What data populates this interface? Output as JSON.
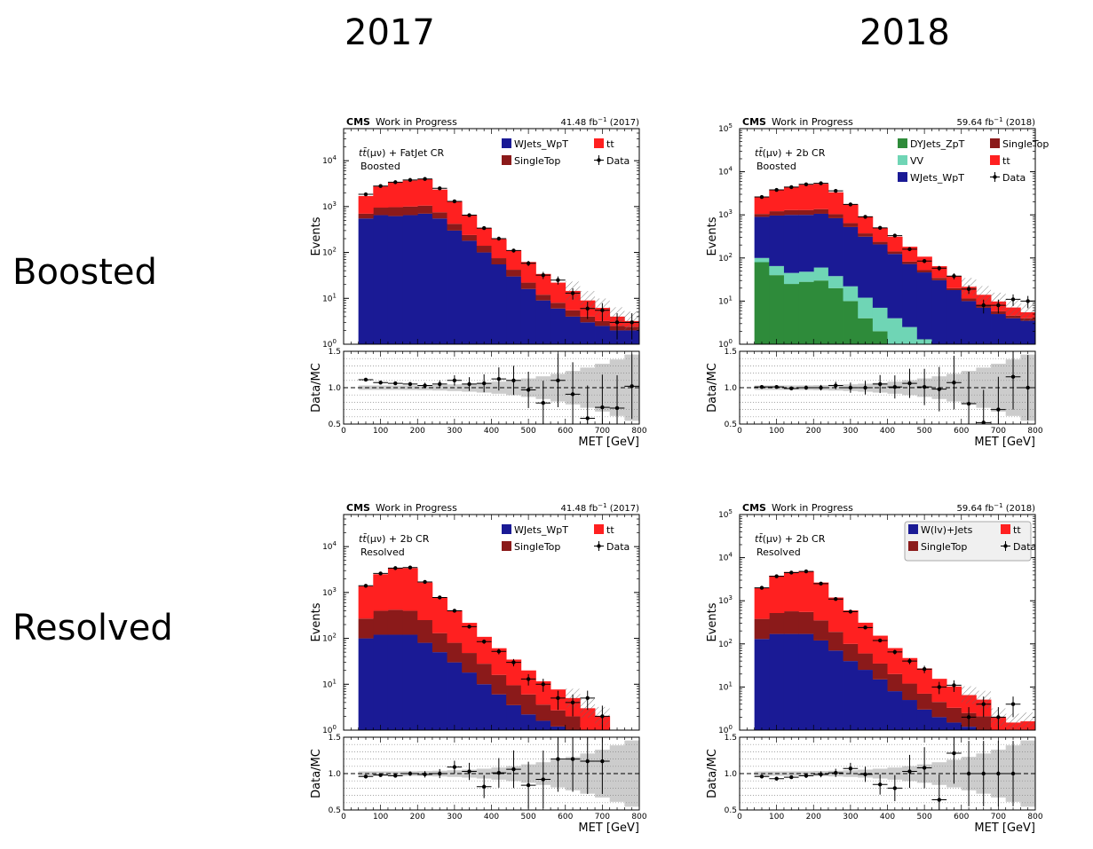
{
  "layout": {
    "col_titles": [
      "2017",
      "2018"
    ],
    "row_titles": [
      "Boosted",
      "Resolved"
    ]
  },
  "chart_data": [
    {
      "id": "boosted_2017",
      "type": "bar",
      "stacked": true,
      "yscale": "log",
      "ylim": [
        1,
        50000
      ],
      "xlim": [
        0,
        800
      ],
      "ratio_ylim": [
        0.5,
        1.5
      ],
      "xlabel": "MET [GeV]",
      "ylabel": "Events",
      "ratio_ylabel": "Data/MC",
      "exp_label": "CMS",
      "exp_sub": "Work in Progress",
      "lumi": "41.48",
      "lumi_year": "(2017)",
      "region": "FatJet CR",
      "subregion": "Boosted",
      "bins": [
        40,
        80,
        120,
        160,
        200,
        240,
        280,
        320,
        360,
        400,
        440,
        480,
        520,
        560,
        600,
        640,
        680,
        720,
        760,
        800
      ],
      "stack": [
        {
          "name": "WJets_WpT",
          "color": "#1a1a95",
          "values": [
            550,
            650,
            620,
            650,
            700,
            550,
            300,
            180,
            100,
            55,
            30,
            16,
            9,
            6,
            4,
            3,
            2.5,
            2,
            2
          ]
        },
        {
          "name": "SingleTop",
          "color": "#8b1a1a",
          "values": [
            150,
            300,
            350,
            350,
            350,
            200,
            120,
            60,
            40,
            20,
            12,
            6,
            3,
            2,
            1.5,
            1,
            0.7,
            0.5,
            0.4
          ]
        },
        {
          "name": "tt",
          "color": "#ff2020",
          "values": [
            1000,
            1800,
            2400,
            2700,
            2900,
            1600,
            900,
            420,
            200,
            120,
            70,
            40,
            22,
            14,
            9,
            5,
            3,
            1.5,
            0.8
          ]
        }
      ],
      "data": {
        "name": "Data",
        "x": [
          60,
          100,
          140,
          180,
          220,
          260,
          300,
          340,
          380,
          420,
          460,
          500,
          540,
          580,
          620,
          660,
          700,
          740,
          780
        ],
        "y": [
          1850,
          2800,
          3400,
          3800,
          4000,
          2500,
          1300,
          650,
          340,
          200,
          110,
          58,
          32,
          25,
          13,
          6,
          5.5,
          3,
          3
        ],
        "ratio": [
          1.11,
          1.07,
          1.06,
          1.05,
          1.03,
          1.05,
          1.1,
          1.05,
          1.06,
          1.12,
          1.1,
          0.97,
          0.79,
          1.1,
          0.91,
          0.58,
          0.73,
          0.72,
          1.02
        ]
      },
      "legend": [
        {
          "name": "WJets_WpT",
          "kind": "box",
          "color": "#1a1a95"
        },
        {
          "name": "tt",
          "kind": "box",
          "color": "#ff2020"
        },
        {
          "name": "SingleTop",
          "kind": "box",
          "color": "#8b1a1a"
        },
        {
          "name": "Data",
          "kind": "marker",
          "color": "#000000"
        }
      ]
    },
    {
      "id": "boosted_2018",
      "type": "bar",
      "stacked": true,
      "yscale": "log",
      "ylim": [
        1,
        100000
      ],
      "xlim": [
        0,
        800
      ],
      "ratio_ylim": [
        0.5,
        1.5
      ],
      "xlabel": "MET [GeV]",
      "ylabel": "Events",
      "ratio_ylabel": "Data/MC",
      "exp_label": "CMS",
      "exp_sub": "Work in Progress",
      "lumi": "59.64",
      "lumi_year": "(2018)",
      "region": "2b CR",
      "subregion": "Boosted",
      "bins": [
        40,
        80,
        120,
        160,
        200,
        240,
        280,
        320,
        360,
        400,
        440,
        480,
        520,
        560,
        600,
        640,
        680,
        720,
        760,
        800
      ],
      "stack": [
        {
          "name": "DYJets_ZpT",
          "color": "#2e8b3a",
          "values": [
            80,
            40,
            25,
            28,
            30,
            20,
            10,
            4,
            2,
            1,
            0.5,
            0.3,
            0,
            0,
            0,
            0,
            0,
            0,
            0
          ]
        },
        {
          "name": "VV",
          "color": "#6fd5b5",
          "values": [
            20,
            25,
            20,
            20,
            30,
            18,
            12,
            8,
            5,
            3,
            2,
            1,
            0.5,
            0,
            0,
            0,
            0,
            0,
            0
          ]
        },
        {
          "name": "WJets_WpT",
          "color": "#1a1a95",
          "values": [
            800,
            900,
            950,
            950,
            1000,
            800,
            500,
            300,
            200,
            120,
            70,
            45,
            30,
            18,
            10,
            7,
            5,
            4,
            3.5
          ]
        },
        {
          "name": "SingleTop",
          "color": "#8b1a1a",
          "values": [
            150,
            250,
            300,
            300,
            300,
            200,
            120,
            60,
            30,
            18,
            10,
            6,
            4,
            2,
            1.5,
            1,
            0.8,
            0.6,
            0.5
          ]
        },
        {
          "name": "tt",
          "color": "#ff2020",
          "values": [
            1500,
            2600,
            3200,
            3700,
            3900,
            2300,
            1100,
            550,
            260,
            170,
            100,
            55,
            30,
            18,
            10,
            6,
            4,
            2.5,
            1.5
          ]
        }
      ],
      "data": {
        "name": "Data",
        "x": [
          60,
          100,
          140,
          180,
          220,
          260,
          300,
          340,
          380,
          420,
          460,
          500,
          540,
          580,
          620,
          660,
          700,
          740,
          780
        ],
        "y": [
          2600,
          3800,
          4400,
          5100,
          5400,
          3600,
          1750,
          900,
          500,
          330,
          160,
          85,
          58,
          38,
          19,
          8,
          8,
          11,
          10
        ],
        "ratio": [
          1.01,
          1.01,
          0.99,
          1.0,
          1.0,
          1.03,
          1.0,
          1.0,
          1.05,
          1.01,
          1.06,
          1.01,
          0.98,
          1.07,
          0.78,
          0.52,
          0.7,
          1.15,
          1.0
        ]
      },
      "legend": [
        {
          "name": "DYJets_ZpT",
          "kind": "box",
          "color": "#2e8b3a"
        },
        {
          "name": "SingleTop",
          "kind": "box",
          "color": "#8b1a1a"
        },
        {
          "name": "VV",
          "kind": "box",
          "color": "#6fd5b5"
        },
        {
          "name": "tt",
          "kind": "box",
          "color": "#ff2020"
        },
        {
          "name": "WJets_WpT",
          "kind": "box",
          "color": "#1a1a95"
        },
        {
          "name": "Data",
          "kind": "marker",
          "color": "#000000"
        }
      ]
    },
    {
      "id": "resolved_2017",
      "type": "bar",
      "stacked": true,
      "yscale": "log",
      "ylim": [
        1,
        50000
      ],
      "xlim": [
        0,
        800
      ],
      "ratio_ylim": [
        0.5,
        1.5
      ],
      "xlabel": "MET [GeV]",
      "ylabel": "Events",
      "ratio_ylabel": "Data/MC",
      "exp_label": "CMS",
      "exp_sub": "Work in Progress",
      "lumi": "41.48",
      "lumi_year": "(2017)",
      "region": "2b CR",
      "subregion": "Resolved",
      "bins": [
        40,
        80,
        120,
        160,
        200,
        240,
        280,
        320,
        360,
        400,
        440,
        480,
        520,
        560,
        600,
        640,
        680,
        720,
        760,
        800
      ],
      "stack": [
        {
          "name": "WJets_WpT",
          "color": "#1a1a95",
          "values": [
            100,
            120,
            120,
            120,
            80,
            50,
            30,
            18,
            10,
            6,
            3.5,
            2.2,
            1.6,
            1.2,
            1,
            0,
            0,
            0,
            0
          ]
        },
        {
          "name": "SingleTop",
          "color": "#8b1a1a",
          "values": [
            170,
            280,
            300,
            280,
            170,
            80,
            50,
            30,
            18,
            10,
            6,
            3.8,
            2,
            1.5,
            1,
            0,
            0,
            0,
            0
          ]
        },
        {
          "name": "tt",
          "color": "#ff2020",
          "values": [
            1100,
            2100,
            3000,
            3000,
            1400,
            650,
            330,
            170,
            80,
            45,
            25,
            14,
            8,
            5,
            3,
            3,
            2,
            0,
            0
          ]
        }
      ],
      "data": {
        "name": "Data",
        "x": [
          60,
          100,
          140,
          180,
          220,
          260,
          300,
          340,
          380,
          420,
          460,
          500,
          540,
          580,
          620,
          660,
          700
        ],
        "y": [
          1400,
          2600,
          3400,
          3500,
          1700,
          780,
          400,
          180,
          85,
          52,
          30,
          13,
          10,
          5,
          4,
          5,
          2
        ],
        "ratio": [
          0.96,
          0.98,
          0.97,
          1.0,
          0.99,
          1.0,
          1.09,
          1.03,
          0.82,
          1.01,
          1.06,
          0.84,
          0.92,
          1.2,
          1.2,
          1.17,
          1.17
        ]
      },
      "legend": [
        {
          "name": "WJets_WpT",
          "kind": "box",
          "color": "#1a1a95"
        },
        {
          "name": "tt",
          "kind": "box",
          "color": "#ff2020"
        },
        {
          "name": "SingleTop",
          "kind": "box",
          "color": "#8b1a1a"
        },
        {
          "name": "Data",
          "kind": "marker",
          "color": "#000000"
        }
      ]
    },
    {
      "id": "resolved_2018",
      "type": "bar",
      "stacked": true,
      "yscale": "log",
      "ylim": [
        1,
        100000
      ],
      "xlim": [
        0,
        800
      ],
      "ratio_ylim": [
        0.5,
        1.5
      ],
      "xlabel": "MET [GeV]",
      "ylabel": "Events",
      "ratio_ylabel": "Data/MC",
      "exp_label": "CMS",
      "exp_sub": "Work in Progress",
      "lumi": "59.64",
      "lumi_year": "(2018)",
      "region": "2b CR",
      "subregion": "Resolved",
      "legend_framed": true,
      "bins": [
        40,
        80,
        120,
        160,
        200,
        240,
        280,
        320,
        360,
        400,
        440,
        480,
        520,
        560,
        600,
        640,
        680,
        720,
        760,
        800
      ],
      "stack": [
        {
          "name": "W(lv)+Jets",
          "color": "#1a1a95",
          "values": [
            130,
            170,
            170,
            170,
            120,
            70,
            40,
            25,
            15,
            8,
            5,
            3,
            2,
            1.5,
            1.2,
            1,
            0,
            0,
            0
          ]
        },
        {
          "name": "SingleTop",
          "color": "#8b1a1a",
          "values": [
            250,
            350,
            400,
            380,
            230,
            120,
            60,
            35,
            20,
            12,
            7,
            4,
            2.5,
            1.8,
            1.3,
            1.1,
            0,
            0,
            0
          ]
        },
        {
          "name": "tt",
          "color": "#ff2020",
          "values": [
            1600,
            3300,
            4100,
            4300,
            2300,
            1000,
            500,
            250,
            120,
            60,
            35,
            20,
            11,
            7,
            4,
            3,
            2,
            1.5,
            1.6
          ]
        }
      ],
      "data": {
        "name": "Data",
        "x": [
          60,
          100,
          140,
          180,
          220,
          260,
          300,
          340,
          380,
          420,
          460,
          500,
          540,
          580,
          620,
          660,
          700,
          740
        ],
        "y": [
          2000,
          3700,
          4500,
          4800,
          2500,
          1100,
          560,
          240,
          120,
          65,
          40,
          26,
          10,
          11,
          2,
          4,
          2,
          4
        ],
        "ratio": [
          0.96,
          0.93,
          0.95,
          0.97,
          0.99,
          1.01,
          1.07,
          0.99,
          0.85,
          0.8,
          1.03,
          1.08,
          0.64,
          1.28,
          1.0,
          1.0,
          1.0,
          1.0
        ]
      },
      "legend": [
        {
          "name": "W(lv)+Jets",
          "kind": "box",
          "color": "#1a1a95"
        },
        {
          "name": "tt",
          "kind": "box",
          "color": "#ff2020"
        },
        {
          "name": "SingleTop",
          "kind": "box",
          "color": "#8b1a1a"
        },
        {
          "name": "Data",
          "kind": "marker",
          "color": "#000000"
        }
      ]
    }
  ]
}
